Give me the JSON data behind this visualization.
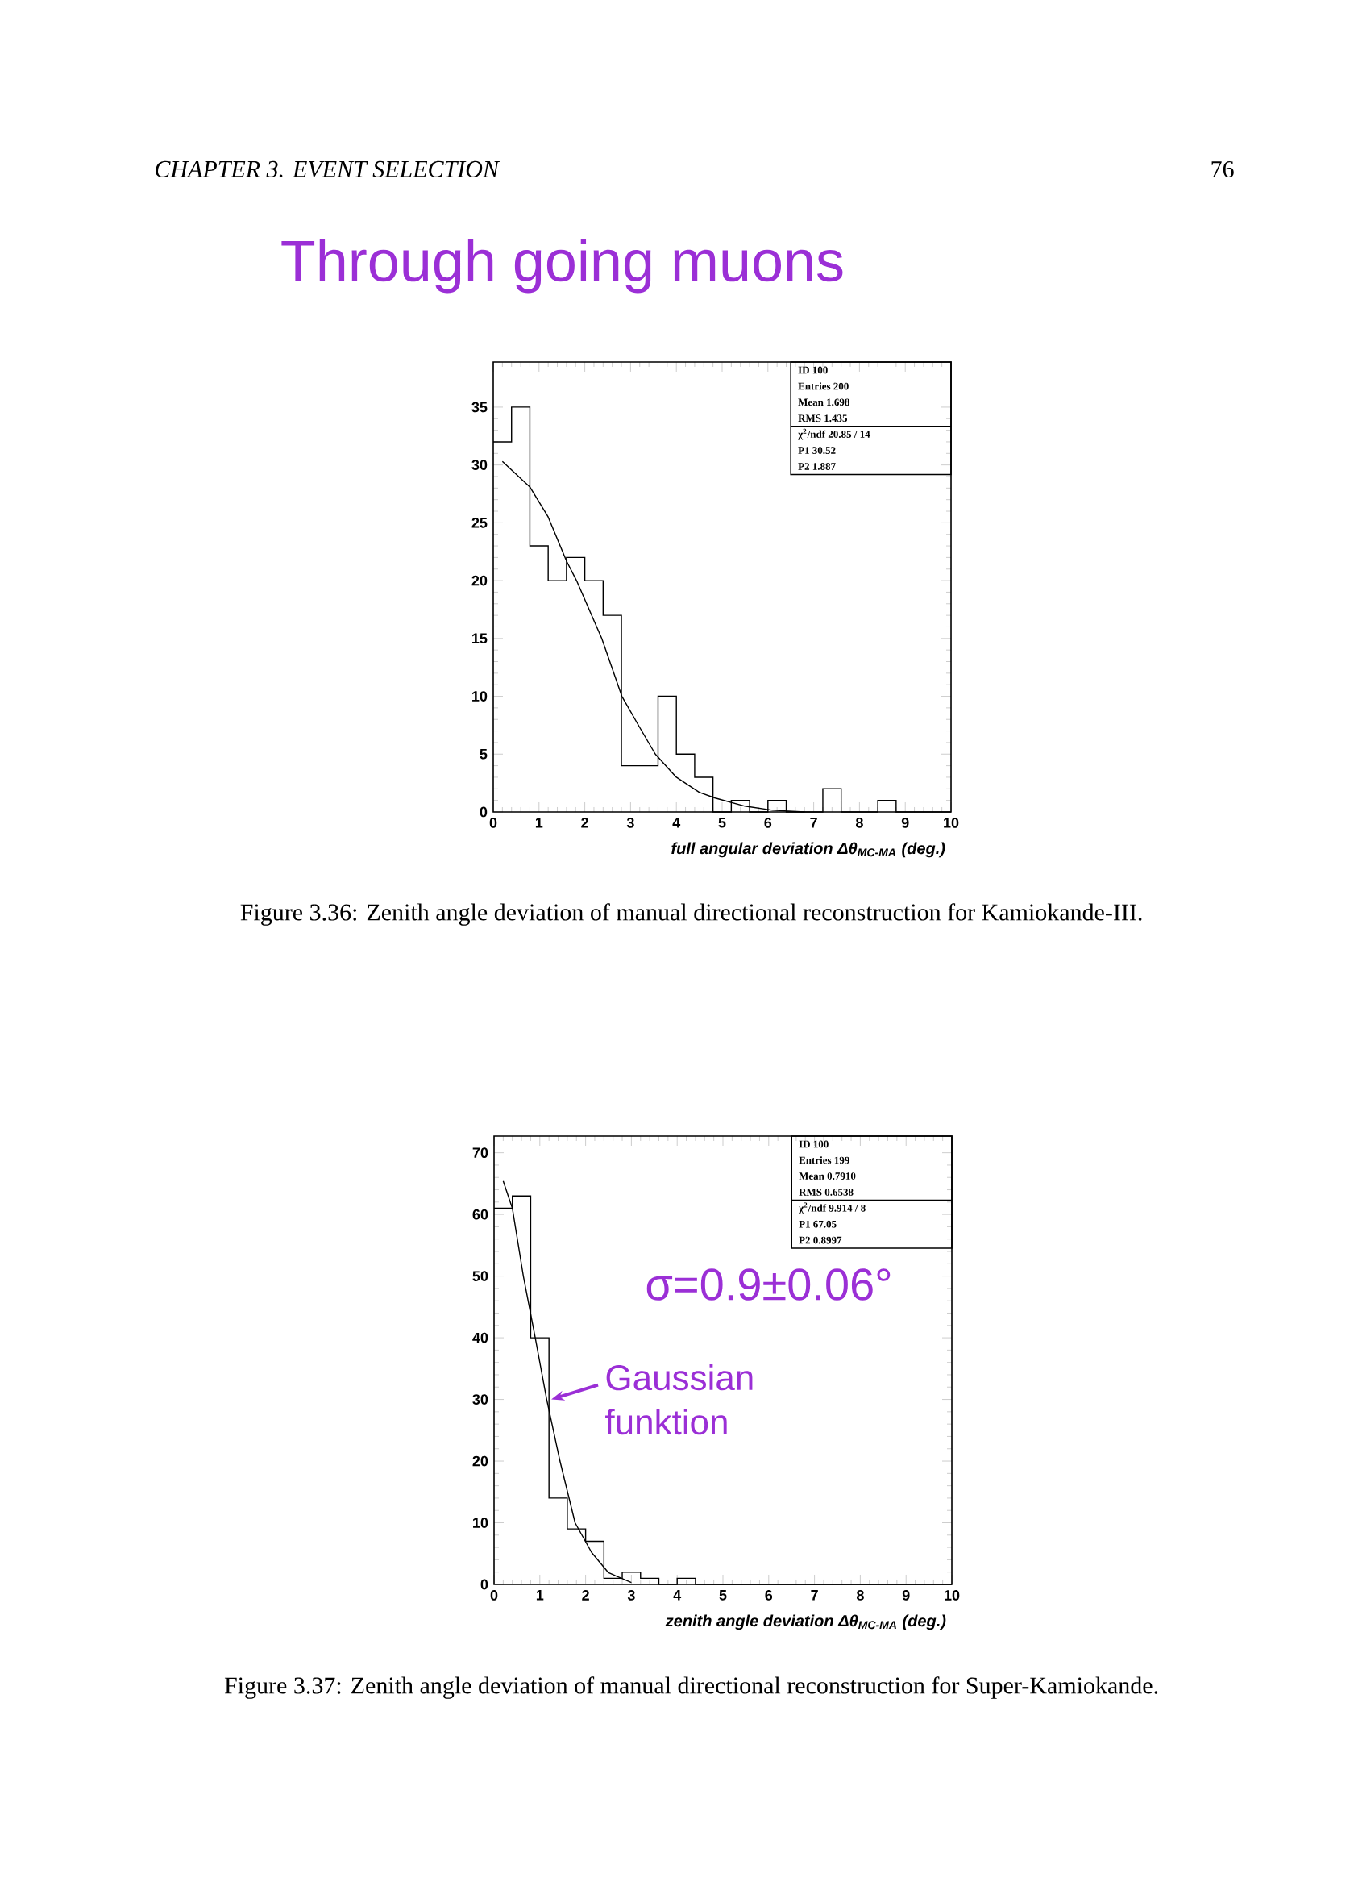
{
  "chart_data": [
    {
      "type": "histogram",
      "title": "Through going muons",
      "xlabel": "full angular deviation Δθ$_{MC-MA}$ (deg.)",
      "color": "#000000",
      "bins": [
        0,
        0.4,
        0.8,
        1.2,
        1.6,
        2.0,
        2.4,
        2.8,
        3.2,
        3.6,
        4.0,
        4.4,
        4.8,
        5.2,
        5.6,
        6.0,
        6.4,
        6.8,
        7.2,
        7.6,
        8.0,
        8.4,
        8.8,
        9.2,
        9.6,
        10
      ],
      "values": [
        32,
        35,
        23,
        20,
        22,
        20,
        17,
        4,
        4,
        10,
        5,
        3,
        0,
        1,
        0,
        1,
        0,
        0,
        2,
        0,
        0,
        1,
        0,
        0,
        0
      ],
      "series": [
        {
          "type": "line",
          "color": "#000000",
          "x": [
            0.2,
            0.8,
            1.2,
            1.6,
            1.82,
            2.37,
            2.81,
            3.2,
            3.54,
            4.0,
            4.5,
            4.85,
            5.5,
            6.1,
            6.8
          ],
          "values": [
            30.3,
            28.1,
            25.5,
            21.7,
            20,
            15,
            10,
            7.3,
            5,
            3,
            1.7,
            1.2,
            0.5,
            0.15,
            0
          ]
        }
      ],
      "xlim": [
        0,
        10
      ],
      "xticks": [
        0,
        1,
        2,
        3,
        4,
        5,
        6,
        7,
        8,
        9,
        10
      ],
      "ylim": [
        0,
        38.9
      ],
      "yticks": [
        0,
        5,
        10,
        15,
        20,
        25,
        30,
        35
      ],
      "annotations": [
        "CHAPTER 3.  EVENT SELECTION",
        "76",
        "Figure 3.36: Zenith angle deviation of manual directional reconstruction for Kamiokande-III.",
        "ID 100",
        "Entries 200",
        "Mean 1.698",
        "RMS 1.435",
        "χ$^{2}$/ndf 20.85 / 14",
        "P1 30.52",
        "P2 1.887"
      ]
    },
    {
      "type": "histogram",
      "xlabel": "zenith angle deviation Δθ$_{MC-MA}$ (deg.)",
      "color": "#000000",
      "bins": [
        0,
        0.4,
        0.8,
        1.2,
        1.6,
        2.0,
        2.4,
        2.8,
        3.2,
        3.6,
        4.0,
        4.4,
        4.8,
        5.2,
        5.6,
        6.0,
        6.4,
        6.8,
        7.2,
        7.6,
        8.0,
        8.4,
        8.8,
        9.2,
        9.6,
        10
      ],
      "values": [
        61,
        63,
        40,
        14,
        9,
        7,
        1,
        2,
        1,
        0,
        1,
        0,
        0,
        0,
        0,
        0,
        0,
        0,
        0,
        0,
        0,
        0,
        0,
        0,
        0
      ],
      "series": [
        {
          "type": "line",
          "color": "#000000",
          "x": [
            0.2,
            0.4,
            0.64,
            0.9,
            1.15,
            1.44,
            1.77,
            2.13,
            2.5,
            3.0
          ],
          "values": [
            65.4,
            61,
            50,
            40,
            30,
            20,
            10,
            5.2,
            1.9,
            0.3
          ]
        }
      ],
      "xlim": [
        0,
        10
      ],
      "xticks": [
        0,
        1,
        2,
        3,
        4,
        5,
        6,
        7,
        8,
        9,
        10
      ],
      "ylim": [
        0,
        72.7
      ],
      "yticks": [
        0,
        10,
        20,
        30,
        40,
        50,
        60,
        70
      ],
      "annotations": [
        "Figure 3.37: Zenith angle deviation of manual directional reconstruction for Super-Kamiokande.",
        "σ=0.9±0.06°",
        {
          "text": "Gaussian funktion",
          "x": 1.25,
          "y": 30
        },
        "ID 100",
        "Entries 199",
        "Mean 0.7910",
        "RMS 0.6538",
        "χ$^{2}$/ndf 9.914 / 8",
        "P1 67.05",
        "P2 0.8997"
      ]
    }
  ]
}
